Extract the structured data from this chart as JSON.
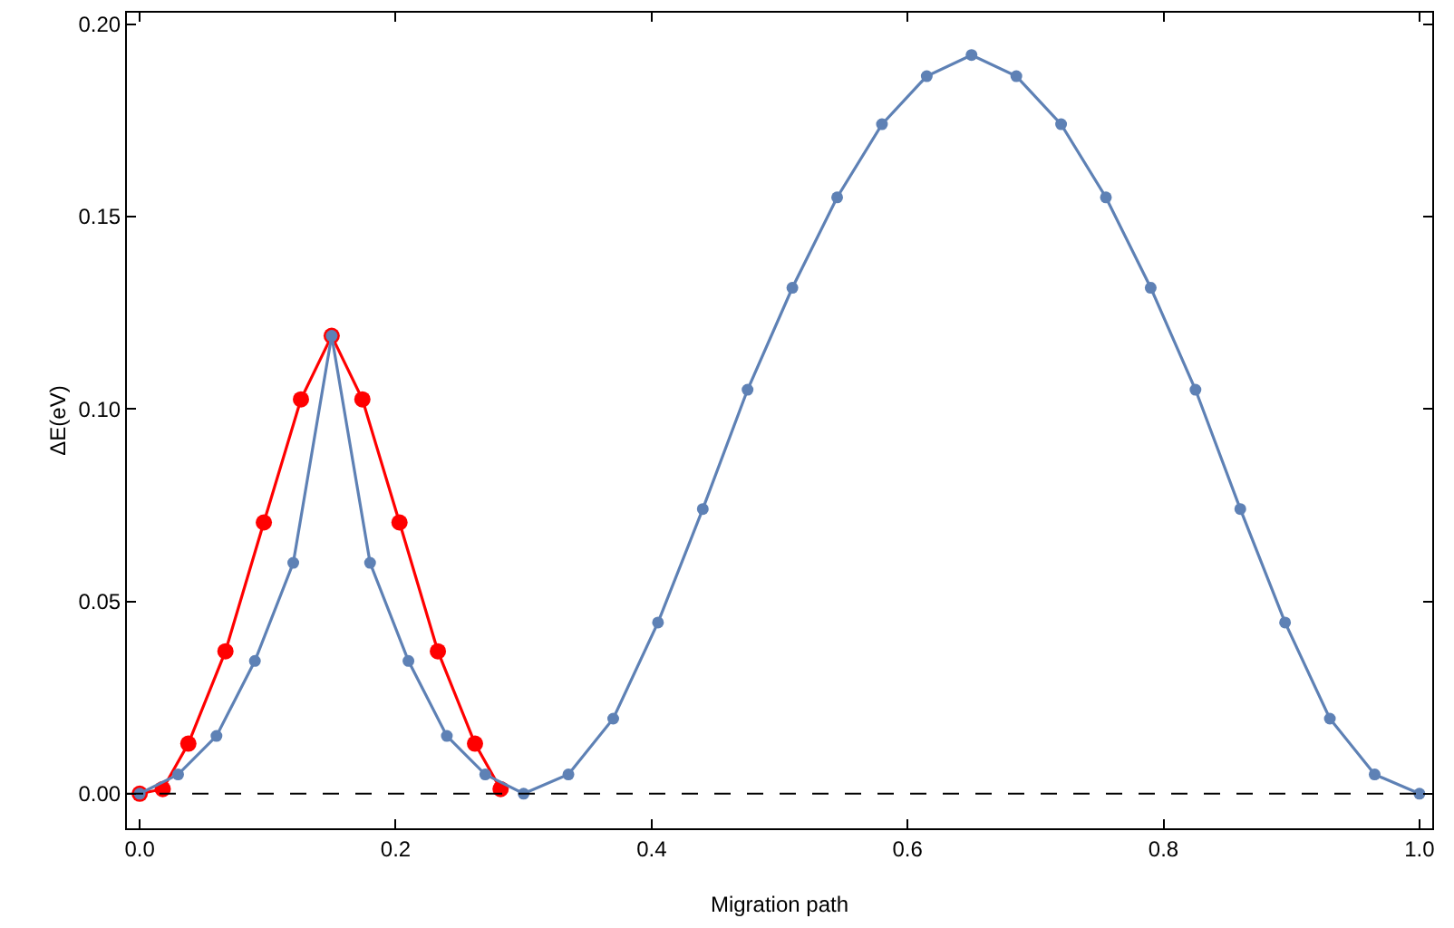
{
  "chart_data": {
    "type": "line",
    "xlabel": "Migration path",
    "ylabel": "ΔE(eV)",
    "xlim": [
      -0.01,
      1.01
    ],
    "ylim": [
      -0.009,
      0.203
    ],
    "xticks": [
      {
        "value": 0,
        "label": "0.0"
      },
      {
        "value": 0.2,
        "label": "0.2"
      },
      {
        "value": 0.4,
        "label": "0.4"
      },
      {
        "value": 0.6,
        "label": "0.6"
      },
      {
        "value": 0.8,
        "label": "0.8"
      },
      {
        "value": 1,
        "label": "1.0"
      }
    ],
    "yticks": [
      {
        "value": 0,
        "label": "0.00"
      },
      {
        "value": 0.05,
        "label": "0.05"
      },
      {
        "value": 0.1,
        "label": "0.10"
      },
      {
        "value": 0.15,
        "label": "0.15"
      },
      {
        "value": 0.2,
        "label": "0.20"
      }
    ],
    "grid": false,
    "marker": "circle",
    "line_style": "solid",
    "ref_lines": [
      {
        "axis": "y",
        "value": 0,
        "line_style": "dashed",
        "color": "#000000"
      }
    ],
    "series": [
      {
        "color": "#5e81b5",
        "x": [
          0,
          0.03,
          0.06,
          0.09,
          0.12,
          0.15,
          0.18,
          0.21,
          0.24,
          0.27,
          0.3,
          0.335,
          0.37,
          0.405,
          0.44,
          0.475,
          0.51,
          0.545,
          0.58,
          0.615,
          0.65,
          0.685,
          0.72,
          0.755,
          0.79,
          0.825,
          0.86,
          0.895,
          0.93,
          0.965,
          1.0
        ],
        "values": [
          0,
          0.005,
          0.015,
          0.0345,
          0.06,
          0.119,
          0.06,
          0.0345,
          0.015,
          0.005,
          0,
          0.005,
          0.0195,
          0.0445,
          0.074,
          0.105,
          0.1315,
          0.155,
          0.174,
          0.1865,
          0.192,
          0.1865,
          0.174,
          0.155,
          0.1315,
          0.105,
          0.074,
          0.0445,
          0.0195,
          0.005,
          0
        ]
      },
      {
        "color": "#ff0000",
        "x": [
          0,
          0.018,
          0.038,
          0.067,
          0.097,
          0.126,
          0.15,
          0.174,
          0.203,
          0.233,
          0.262,
          0.282
        ],
        "values": [
          0,
          0.0012,
          0.013,
          0.037,
          0.0705,
          0.1025,
          0.119,
          0.1025,
          0.0705,
          0.037,
          0.013,
          0.0012
        ]
      }
    ]
  }
}
